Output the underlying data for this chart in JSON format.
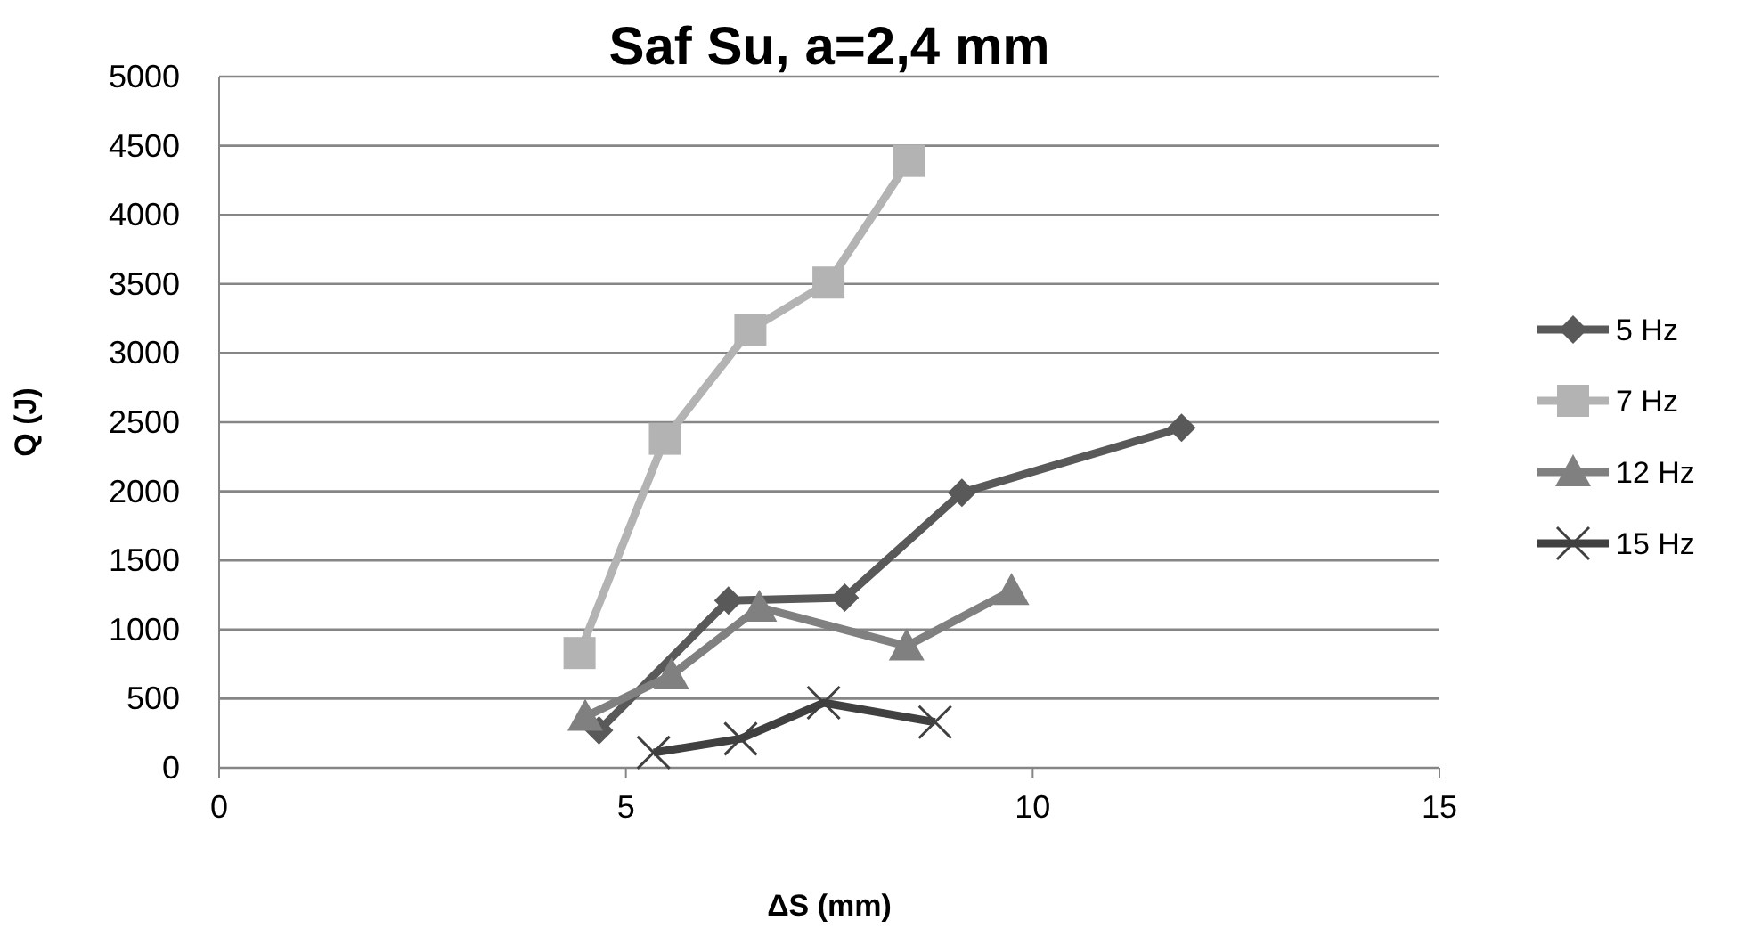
{
  "chart_data": {
    "type": "line",
    "title": "Saf Su, a=2,4 mm",
    "xlabel": "ΔS (mm)",
    "ylabel": "Q (J)",
    "xlim": [
      0,
      15
    ],
    "xticks": [
      0,
      5,
      10,
      15
    ],
    "ylim": [
      0,
      5000
    ],
    "yticks": [
      0,
      500,
      1000,
      1500,
      2000,
      2500,
      3000,
      3500,
      4000,
      4500,
      5000
    ],
    "grid": "y",
    "legend": "right",
    "line_style": "solid",
    "series": [
      {
        "name": "5 Hz",
        "color": "#595959",
        "marker": "diamond",
        "x": [
          4.67,
          6.26,
          7.69,
          9.13,
          11.83
        ],
        "values": [
          270,
          1210,
          1230,
          1990,
          2460
        ]
      },
      {
        "name": "7 Hz",
        "color": "#b3b3b3",
        "marker": "square",
        "x": [
          4.43,
          5.48,
          6.53,
          7.49,
          8.48
        ],
        "values": [
          830,
          2380,
          3170,
          3510,
          4390
        ]
      },
      {
        "name": "12 Hz",
        "color": "#808080",
        "marker": "triangle",
        "x": [
          4.5,
          5.56,
          6.64,
          8.45,
          9.74
        ],
        "values": [
          370,
          670,
          1160,
          880,
          1280
        ]
      },
      {
        "name": "15 Hz",
        "color": "#404040",
        "marker": "cross",
        "x": [
          5.34,
          6.41,
          7.43,
          8.8
        ],
        "values": [
          110,
          210,
          470,
          330
        ]
      }
    ]
  }
}
